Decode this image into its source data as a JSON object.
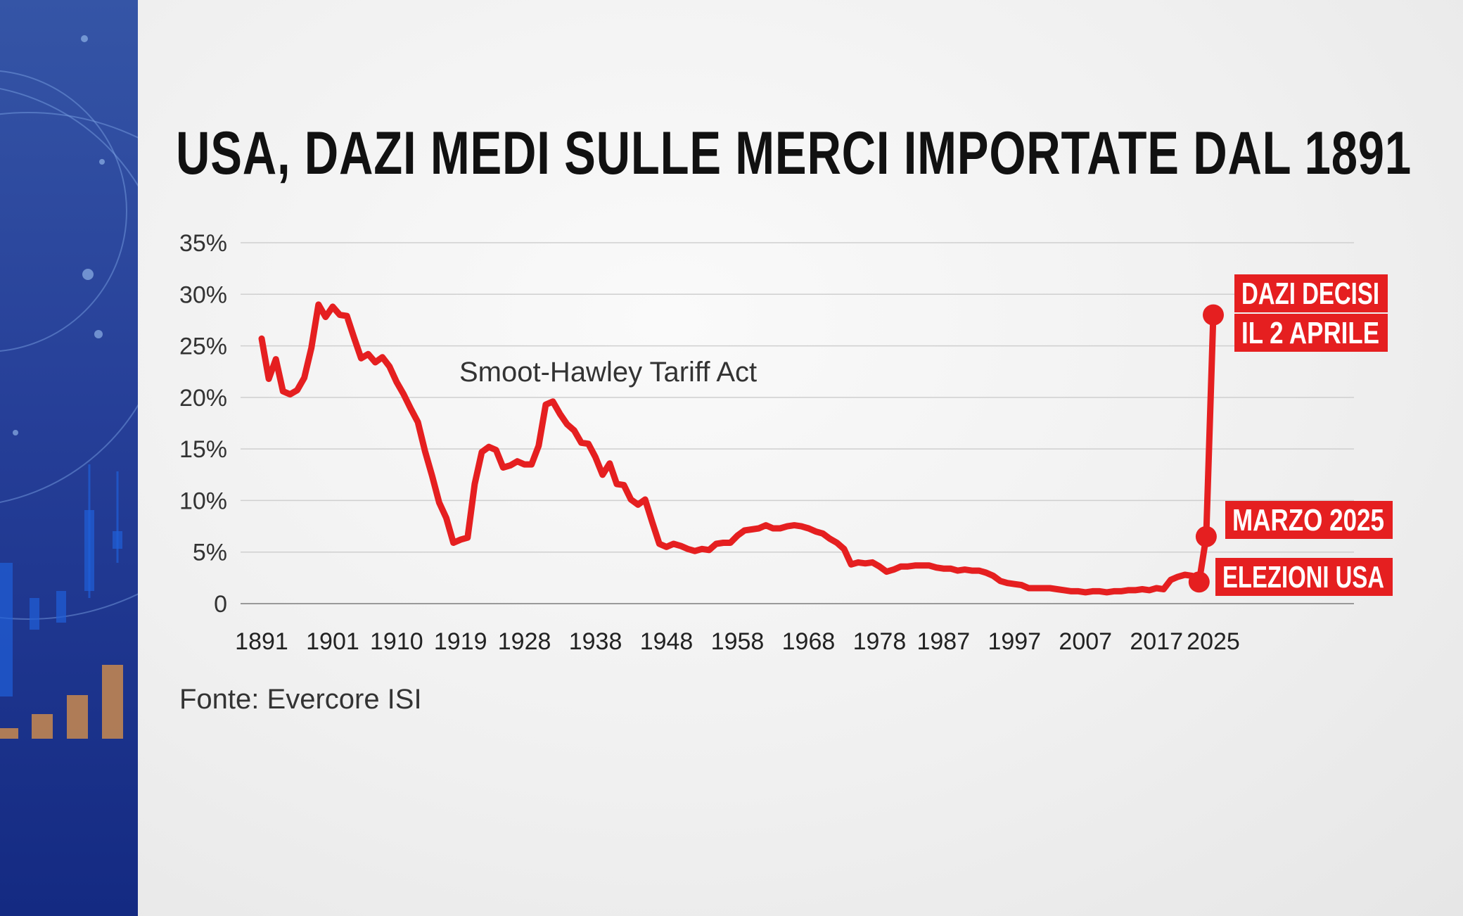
{
  "title": "USA, DAZI MEDI SULLE MERCI IMPORTATE DAL 1891",
  "source": "Fonte: Evercore ISI",
  "colors": {
    "line": "#e51f20",
    "sidebar": "#263f98",
    "label_bg": "#e51f20"
  },
  "chart_data": {
    "type": "line",
    "title": "USA, DAZI MEDI SULLE MERCI IMPORTATE DAL 1891",
    "xlabel": "",
    "ylabel": "",
    "ylim": [
      0,
      35
    ],
    "xlim": [
      1891,
      2025
    ],
    "grid": true,
    "y_ticks": [
      "0",
      "5%",
      "10%",
      "15%",
      "20%",
      "25%",
      "30%",
      "35%"
    ],
    "y_tick_values": [
      0,
      5,
      10,
      15,
      20,
      25,
      30,
      35
    ],
    "x_ticks": [
      "1891",
      "1901",
      "1910",
      "1919",
      "1928",
      "1938",
      "1948",
      "1958",
      "1968",
      "1978",
      "1987",
      "1997",
      "2007",
      "2017",
      "2025"
    ],
    "x_tick_values": [
      1891,
      1901,
      1910,
      1919,
      1928,
      1938,
      1948,
      1958,
      1968,
      1978,
      1987,
      1997,
      2007,
      2017,
      2025
    ],
    "series": [
      {
        "color": "#e51f20",
        "x": [
          1891,
          1892,
          1893,
          1894,
          1895,
          1896,
          1897,
          1898,
          1899,
          1900,
          1901,
          1902,
          1903,
          1904,
          1905,
          1906,
          1907,
          1908,
          1909,
          1910,
          1911,
          1912,
          1913,
          1914,
          1915,
          1916,
          1917,
          1918,
          1919,
          1920,
          1921,
          1922,
          1923,
          1924,
          1925,
          1926,
          1927,
          1928,
          1929,
          1930,
          1931,
          1932,
          1933,
          1934,
          1935,
          1936,
          1937,
          1938,
          1939,
          1940,
          1941,
          1942,
          1943,
          1944,
          1945,
          1946,
          1947,
          1948,
          1949,
          1950,
          1951,
          1952,
          1953,
          1954,
          1955,
          1956,
          1957,
          1958,
          1959,
          1960,
          1961,
          1962,
          1963,
          1964,
          1965,
          1966,
          1967,
          1968,
          1969,
          1970,
          1971,
          1972,
          1973,
          1974,
          1975,
          1976,
          1977,
          1978,
          1979,
          1980,
          1981,
          1982,
          1983,
          1984,
          1985,
          1986,
          1987,
          1988,
          1989,
          1990,
          1991,
          1992,
          1993,
          1994,
          1995,
          1996,
          1997,
          1998,
          1999,
          2000,
          2001,
          2002,
          2003,
          2004,
          2005,
          2006,
          2007,
          2008,
          2009,
          2010,
          2011,
          2012,
          2013,
          2014,
          2015,
          2016,
          2017,
          2018,
          2019,
          2020,
          2021,
          2022,
          2023,
          2024,
          2025
        ],
        "values": [
          25.7,
          21.8,
          23.7,
          20.6,
          20.3,
          20.7,
          21.9,
          24.8,
          29.0,
          27.8,
          28.8,
          28.0,
          27.9,
          25.8,
          23.8,
          24.2,
          23.4,
          23.9,
          23.0,
          21.5,
          20.3,
          18.9,
          17.6,
          14.8,
          12.4,
          9.8,
          8.3,
          5.9,
          6.2,
          6.4,
          11.6,
          14.7,
          15.2,
          14.9,
          13.2,
          13.4,
          13.8,
          13.5,
          13.5,
          15.3,
          19.3,
          19.6,
          18.4,
          17.4,
          16.8,
          15.6,
          15.5,
          14.2,
          12.5,
          13.6,
          11.6,
          11.5,
          10.1,
          9.6,
          10.1,
          7.9,
          5.8,
          5.5,
          5.8,
          5.6,
          5.3,
          5.1,
          5.3,
          5.2,
          5.8,
          5.9,
          5.9,
          6.6,
          7.1,
          7.2,
          7.3,
          7.6,
          7.3,
          7.3,
          7.5,
          7.6,
          7.5,
          7.3,
          7.0,
          6.8,
          6.3,
          5.9,
          5.3,
          3.8,
          4.0,
          3.9,
          4.0,
          3.6,
          3.1,
          3.3,
          3.6,
          3.6,
          3.7,
          3.7,
          3.7,
          3.5,
          3.4,
          3.4,
          3.2,
          3.3,
          3.2,
          3.2,
          3.0,
          2.7,
          2.2,
          2.0,
          1.9,
          1.8,
          1.5,
          1.5,
          1.5,
          1.5,
          1.4,
          1.3,
          1.2,
          1.2,
          1.1,
          1.2,
          1.2,
          1.1,
          1.2,
          1.2,
          1.3,
          1.3,
          1.4,
          1.3,
          1.5,
          1.4,
          2.3,
          2.6,
          2.8,
          2.7,
          2.1,
          6.5,
          28.0
        ]
      }
    ],
    "annotations": [
      {
        "text": "Smoot-Hawley Tariff Act",
        "x": 1930,
        "y": 22.5
      }
    ],
    "highlights": [
      {
        "label": "DAZI DECISI IL 2 APRILE",
        "lines": [
          "DAZI DECISI",
          "IL 2 APRILE"
        ],
        "x": 2025,
        "y": 28.0
      },
      {
        "label": "MARZO 2025",
        "x": 2024,
        "y": 6.5
      },
      {
        "label": "ELEZIONI USA",
        "x": 2023,
        "y": 2.1
      }
    ]
  }
}
